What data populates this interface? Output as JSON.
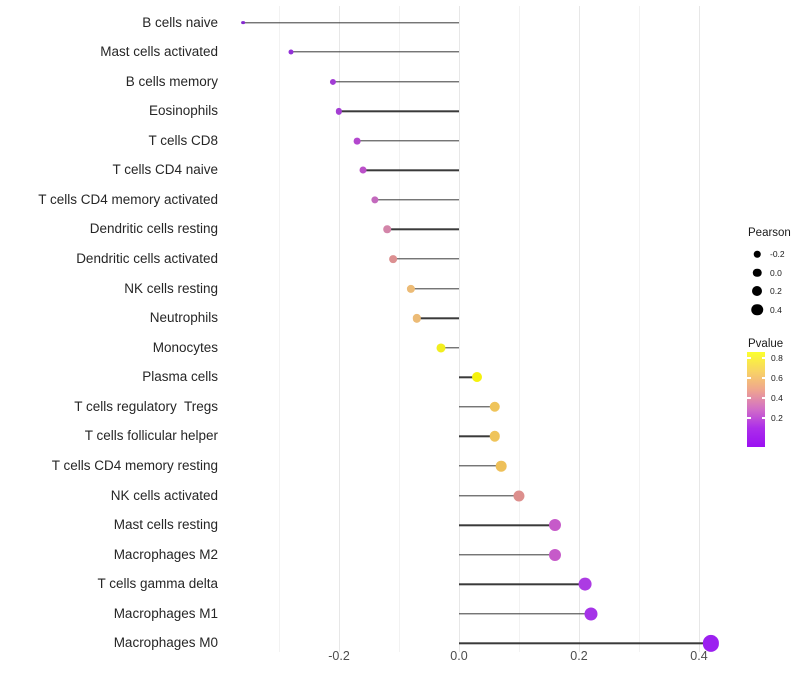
{
  "chart_data": {
    "type": "lollipop",
    "orientation": "horizontal",
    "title": "",
    "xlabel": "",
    "ylabel": "",
    "categories": [
      "B cells naive",
      "Mast cells activated",
      "B cells memory",
      "Eosinophils",
      "T cells CD8",
      "T cells CD4 naive",
      "T cells CD4 memory activated",
      "Dendritic cells resting",
      "Dendritic cells activated",
      "NK cells resting",
      "Neutrophils",
      "Monocytes",
      "Plasma cells",
      "T cells regulatory  Tregs",
      "T cells follicular helper",
      "T cells CD4 memory resting",
      "NK cells activated",
      "Mast cells resting",
      "Macrophages M2",
      "T cells gamma delta",
      "Macrophages M1",
      "Macrophages M0"
    ],
    "series": [
      {
        "name": "Pearson",
        "values": [
          -0.36,
          -0.28,
          -0.21,
          -0.2,
          -0.17,
          -0.16,
          -0.14,
          -0.12,
          -0.11,
          -0.08,
          -0.07,
          -0.03,
          0.03,
          0.06,
          0.06,
          0.07,
          0.1,
          0.16,
          0.16,
          0.21,
          0.22,
          0.42
        ]
      }
    ],
    "point_colors": [
      "#8429CE",
      "#9331D8",
      "#A23CD5",
      "#A43ED3",
      "#B347CE",
      "#BB50C9",
      "#C369BD",
      "#D385A9",
      "#DC9091",
      "#ECBB76",
      "#ECBB76",
      "#F2EE1E",
      "#F5F20D",
      "#EFC45A",
      "#EFC45A",
      "#EEC059",
      "#DD8F8D",
      "#C65AC9",
      "#C65AC9",
      "#AC3BE3",
      "#A533E8",
      "#9C20F0"
    ],
    "baseline": 0.0,
    "xlim": [
      -0.4,
      0.46
    ],
    "grid": "on",
    "x_ticks": [
      {
        "value": -0.2,
        "label": "-0.2"
      },
      {
        "value": 0.0,
        "label": "0.0"
      },
      {
        "value": 0.2,
        "label": "0.2"
      },
      {
        "value": 0.4,
        "label": "0.4"
      }
    ],
    "minor_gridlines": [
      -0.3,
      -0.1,
      0.1,
      0.3
    ],
    "legends": {
      "size": {
        "title": "Pearson",
        "position": "right",
        "dot_color": "#000000",
        "entries": [
          {
            "label": "-0.2",
            "diameter": 6.5
          },
          {
            "label": "0.0",
            "diameter": 8.5
          },
          {
            "label": "0.2",
            "diameter": 10
          },
          {
            "label": "0.4",
            "diameter": 11.5
          }
        ]
      },
      "color": {
        "title": "Pvalue",
        "position": "right",
        "ticks": [
          "0.8",
          "0.6",
          "0.4",
          "0.2"
        ],
        "gradient_top_to_bottom": [
          "#FBFF2E",
          "#F8D464",
          "#EFA58F",
          "#D26FC6",
          "#AC2EEA",
          "#9B10F2"
        ]
      }
    },
    "colors": {
      "stick": "#3a3a3a",
      "gridline_major": "#e7e7e7",
      "gridline_minor": "#f2f2f2",
      "axis_text": "#4d4d4d",
      "label_text": "#262626",
      "background": "#ffffff"
    }
  }
}
